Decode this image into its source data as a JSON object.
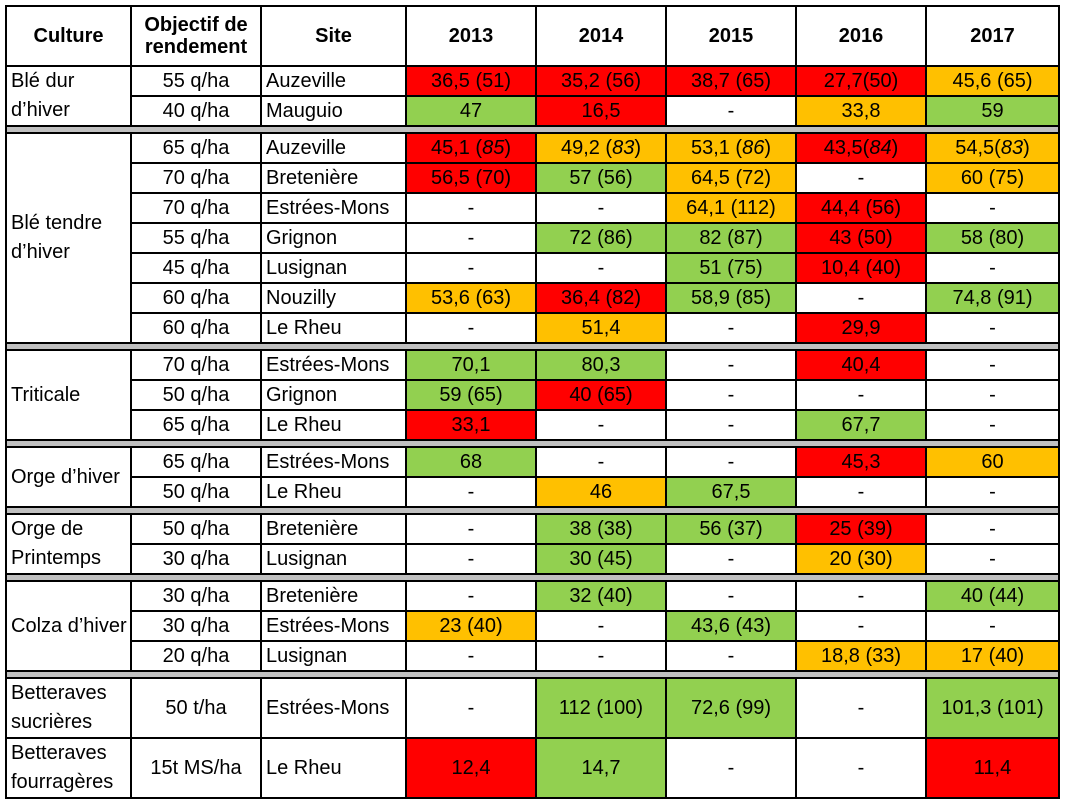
{
  "colors": {
    "r": "#ff0000",
    "o": "#ffc000",
    "g": "#92d050",
    "w": "#ffffff"
  },
  "headers": [
    "Culture",
    "Objectif de rendement",
    "Site",
    "2013",
    "2014",
    "2015",
    "2016",
    "2017"
  ],
  "groups": [
    {
      "culture": "Blé dur d’hiver",
      "rows": [
        {
          "obj": "55 q/ha",
          "site": "Auzeville",
          "cells": [
            [
              "36,5 (51)",
              "r"
            ],
            [
              "35,2 (56)",
              "r"
            ],
            [
              "38,7 (65)",
              "r"
            ],
            [
              "27,7(50)",
              "r"
            ],
            [
              "45,6 (65)",
              "o"
            ]
          ]
        },
        {
          "obj": "40 q/ha",
          "site": "Mauguio",
          "cells": [
            [
              "47",
              "g"
            ],
            [
              "16,5",
              "r"
            ],
            [
              "-",
              "w"
            ],
            [
              "33,8",
              "o"
            ],
            [
              "59",
              "g"
            ]
          ]
        }
      ]
    },
    {
      "culture": "Blé tendre d’hiver",
      "rows": [
        {
          "obj": "65 q/ha",
          "site": "Auzeville",
          "italic_paren": true,
          "cells": [
            [
              "45,1 (85)",
              "r"
            ],
            [
              "49,2 (83)",
              "o"
            ],
            [
              "53,1 (86)",
              "o"
            ],
            [
              "43,5(84)",
              "r"
            ],
            [
              "54,5(83)",
              "o"
            ]
          ]
        },
        {
          "obj": "70 q/ha",
          "site": "Bretenière",
          "cells": [
            [
              "56,5 (70)",
              "r"
            ],
            [
              "57 (56)",
              "g"
            ],
            [
              "64,5 (72)",
              "o"
            ],
            [
              "-",
              "w"
            ],
            [
              "60 (75)",
              "o"
            ]
          ]
        },
        {
          "obj": "70 q/ha",
          "site": "Estrées-Mons",
          "cells": [
            [
              "-",
              "w"
            ],
            [
              "-",
              "w"
            ],
            [
              "64,1 (112)",
              "o"
            ],
            [
              "44,4 (56)",
              "r"
            ],
            [
              "-",
              "w"
            ]
          ]
        },
        {
          "obj": "55 q/ha",
          "site": "Grignon",
          "cells": [
            [
              "-",
              "w"
            ],
            [
              "72 (86)",
              "g"
            ],
            [
              "82 (87)",
              "g"
            ],
            [
              "43 (50)",
              "r"
            ],
            [
              "58 (80)",
              "g"
            ]
          ]
        },
        {
          "obj": "45 q/ha",
          "site": "Lusignan",
          "cells": [
            [
              "-",
              "w"
            ],
            [
              "-",
              "w"
            ],
            [
              "51 (75)",
              "g"
            ],
            [
              "10,4 (40)",
              "r"
            ],
            [
              "-",
              "w"
            ]
          ]
        },
        {
          "obj": "60 q/ha",
          "site": "Nouzilly",
          "cells": [
            [
              "53,6 (63)",
              "o"
            ],
            [
              "36,4 (82)",
              "r"
            ],
            [
              "58,9 (85)",
              "g"
            ],
            [
              "-",
              "w"
            ],
            [
              "74,8 (91)",
              "g"
            ]
          ]
        },
        {
          "obj": "60 q/ha",
          "site": "Le Rheu",
          "cells": [
            [
              "-",
              "w"
            ],
            [
              "51,4",
              "o"
            ],
            [
              "-",
              "w"
            ],
            [
              "29,9",
              "r"
            ],
            [
              "-",
              "w"
            ]
          ]
        }
      ]
    },
    {
      "culture": "Triticale",
      "rows": [
        {
          "obj": "70 q/ha",
          "site": "Estrées-Mons",
          "cells": [
            [
              "70,1",
              "g"
            ],
            [
              "80,3",
              "g"
            ],
            [
              "-",
              "w"
            ],
            [
              "40,4",
              "r"
            ],
            [
              "-",
              "w"
            ]
          ]
        },
        {
          "obj": "50 q/ha",
          "site": "Grignon",
          "cells": [
            [
              "59 (65)",
              "g"
            ],
            [
              "40 (65)",
              "r"
            ],
            [
              "-",
              "w"
            ],
            [
              "-",
              "w"
            ],
            [
              "-",
              "w"
            ]
          ]
        },
        {
          "obj": "65 q/ha",
          "site": "Le Rheu",
          "cells": [
            [
              "33,1",
              "r"
            ],
            [
              "-",
              "w"
            ],
            [
              "-",
              "w"
            ],
            [
              "67,7",
              "g"
            ],
            [
              "-",
              "w"
            ]
          ]
        }
      ]
    },
    {
      "culture": "Orge d’hiver",
      "rows": [
        {
          "obj": "65 q/ha",
          "site": "Estrées-Mons",
          "cells": [
            [
              "68",
              "g"
            ],
            [
              "-",
              "w"
            ],
            [
              "-",
              "w"
            ],
            [
              "45,3",
              "r"
            ],
            [
              "60",
              "o"
            ]
          ]
        },
        {
          "obj": "50 q/ha",
          "site": "Le Rheu",
          "cells": [
            [
              "-",
              "w"
            ],
            [
              "46",
              "o"
            ],
            [
              "67,5",
              "g"
            ],
            [
              "-",
              "w"
            ],
            [
              "-",
              "w"
            ]
          ]
        }
      ]
    },
    {
      "culture": "Orge de Printemps",
      "rows": [
        {
          "obj": "50 q/ha",
          "site": "Bretenière",
          "cells": [
            [
              "-",
              "w"
            ],
            [
              "38 (38)",
              "g"
            ],
            [
              "56 (37)",
              "g"
            ],
            [
              "25 (39)",
              "r"
            ],
            [
              "-",
              "w"
            ]
          ]
        },
        {
          "obj": "30 q/ha",
          "site": "Lusignan",
          "cells": [
            [
              "-",
              "w"
            ],
            [
              "30 (45)",
              "g"
            ],
            [
              "-",
              "w"
            ],
            [
              "20 (30)",
              "o"
            ],
            [
              "-",
              "w"
            ]
          ]
        }
      ]
    },
    {
      "culture": "Colza d’hiver",
      "rows": [
        {
          "obj": "30 q/ha",
          "site": "Bretenière",
          "cells": [
            [
              "-",
              "w"
            ],
            [
              "32 (40)",
              "g"
            ],
            [
              "-",
              "w"
            ],
            [
              "-",
              "w"
            ],
            [
              "40 (44)",
              "g"
            ]
          ]
        },
        {
          "obj": "30 q/ha",
          "site": "Estrées-Mons",
          "cells": [
            [
              "23 (40)",
              "o"
            ],
            [
              "-",
              "w"
            ],
            [
              "43,6 (43)",
              "g"
            ],
            [
              "-",
              "w"
            ],
            [
              "-",
              "w"
            ]
          ]
        },
        {
          "obj": "20 q/ha",
          "site": "Lusignan",
          "cells": [
            [
              "-",
              "w"
            ],
            [
              "-",
              "w"
            ],
            [
              "-",
              "w"
            ],
            [
              "18,8 (33)",
              "o"
            ],
            [
              "17 (40)",
              "o"
            ]
          ]
        }
      ]
    },
    {
      "culture": "Betteraves sucrières",
      "tall": true,
      "nosep": true,
      "rows": [
        {
          "obj": "50 t/ha",
          "site": "Estrées-Mons",
          "cells": [
            [
              "-",
              "w"
            ],
            [
              "112 (100)",
              "g"
            ],
            [
              "72,6 (99)",
              "g"
            ],
            [
              "-",
              "w"
            ],
            [
              "101,3 (101)",
              "g"
            ]
          ]
        }
      ]
    },
    {
      "culture": "Betteraves fourragères",
      "tall": true,
      "rows": [
        {
          "obj": "15t MS/ha",
          "site": "Le Rheu",
          "cells": [
            [
              "12,4",
              "r"
            ],
            [
              "14,7",
              "g"
            ],
            [
              "-",
              "w"
            ],
            [
              "-",
              "w"
            ],
            [
              "11,4",
              "r"
            ]
          ]
        }
      ]
    }
  ]
}
